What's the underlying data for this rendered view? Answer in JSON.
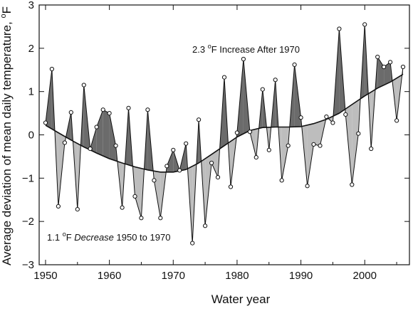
{
  "chart_data": {
    "type": "area",
    "xlabel": "Water year",
    "ylabel": "Average deviation of mean daily temperature, °F",
    "ylabel_parts": {
      "text": "Average deviation of mean daily temperature, ",
      "superscript": "o",
      "unit": "F"
    },
    "xlim": [
      1949,
      2007
    ],
    "ylim": [
      -3,
      3
    ],
    "xticks": [
      1950,
      1960,
      1970,
      1980,
      1990,
      2000
    ],
    "yticks": [
      -3,
      -2,
      -1,
      0,
      1,
      2,
      3
    ],
    "grid": false,
    "annotations": [
      {
        "id": "increase",
        "before": "2.3 ",
        "superscript": "o",
        "after": "F Increase After 1970"
      },
      {
        "id": "decrease",
        "before": "1.1 ",
        "superscript": "o",
        "after_unit": "F ",
        "emphasis": "Decrease",
        "after": " 1950 to 1970"
      }
    ],
    "colors": {
      "above_fill": "#6b6b6b",
      "below_fill": "#bdbdbd",
      "line": "#111111",
      "marker_fill": "#ffffff"
    },
    "series": [
      {
        "x": [
          1950,
          1951,
          1952,
          1953,
          1954,
          1955,
          1956,
          1957,
          1958,
          1959,
          1960,
          1961,
          1962,
          1963,
          1964,
          1965,
          1966,
          1967,
          1968,
          1969,
          1970,
          1971,
          1972,
          1973,
          1974,
          1975,
          1976,
          1977,
          1978,
          1979,
          1980,
          1981,
          1982,
          1983,
          1984,
          1985,
          1986,
          1987,
          1988,
          1989,
          1990,
          1991,
          1992,
          1993,
          1994,
          1995,
          1996,
          1997,
          1998,
          1999,
          2000,
          2001,
          2002,
          2003,
          2004,
          2005,
          2006
        ],
        "values": [
          0.28,
          1.52,
          -1.65,
          -0.18,
          0.52,
          -1.72,
          1.15,
          -0.32,
          0.18,
          0.58,
          0.5,
          -0.25,
          -1.68,
          0.62,
          -1.42,
          -1.92,
          0.58,
          -1.05,
          -1.92,
          -0.72,
          -0.35,
          -0.82,
          -0.2,
          -2.5,
          0.35,
          -2.1,
          -0.65,
          -0.98,
          1.33,
          -1.2,
          0.05,
          1.75,
          0.07,
          -0.52,
          1.05,
          -0.35,
          1.27,
          -1.05,
          -0.25,
          1.62,
          0.4,
          -1.18,
          -0.22,
          -0.25,
          0.42,
          0.28,
          2.45,
          0.47,
          -1.15,
          0.03,
          2.55,
          -0.32,
          1.8,
          1.57,
          1.68,
          0.33,
          1.57
        ]
      },
      {
        "x": [
          1950,
          1952,
          1954,
          1956,
          1958,
          1960,
          1962,
          1964,
          1966,
          1968,
          1970,
          1972,
          1974,
          1976,
          1978,
          1980,
          1982,
          1984,
          1986,
          1988,
          1990,
          1992,
          1994,
          1996,
          1998,
          2000,
          2002,
          2004,
          2006
        ],
        "values": [
          0.22,
          0.05,
          -0.12,
          -0.28,
          -0.42,
          -0.55,
          -0.65,
          -0.74,
          -0.81,
          -0.86,
          -0.86,
          -0.8,
          -0.65,
          -0.45,
          -0.25,
          -0.05,
          0.1,
          0.17,
          0.18,
          0.18,
          0.19,
          0.26,
          0.36,
          0.5,
          0.7,
          0.9,
          1.08,
          1.22,
          1.4
        ]
      }
    ]
  }
}
